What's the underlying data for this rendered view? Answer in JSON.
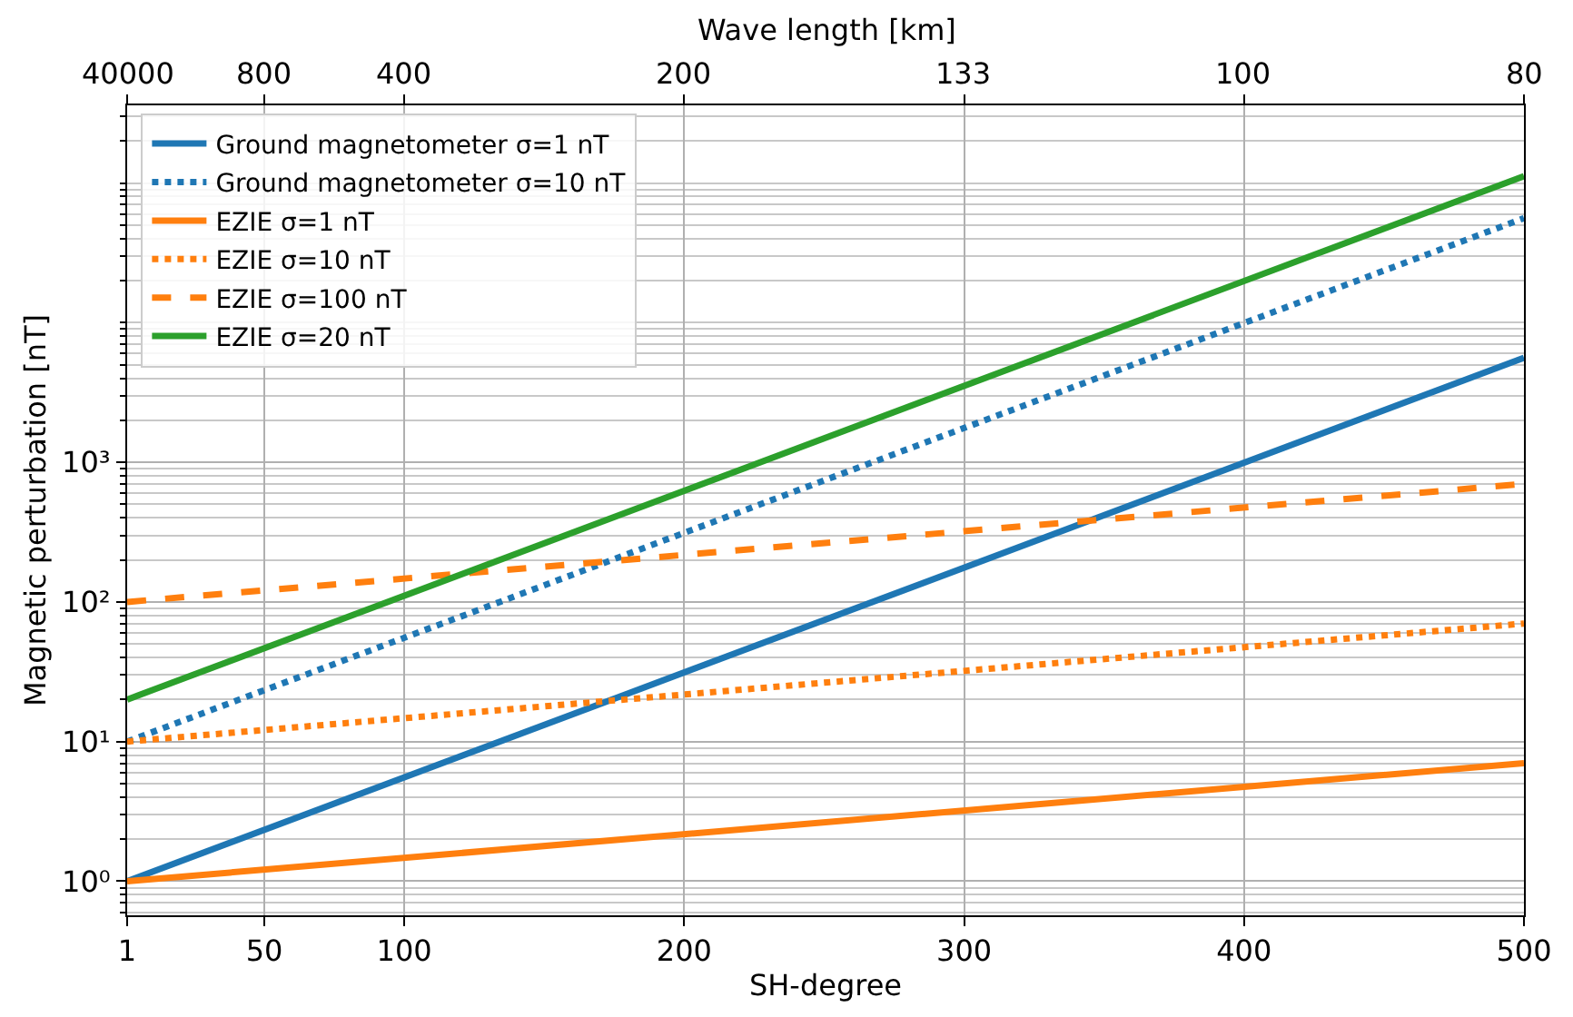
{
  "chart_data": {
    "type": "line",
    "xlabel": "SH-degree",
    "ylabel": "Magnetic perturbation [nT]",
    "x2label": "Wave length [km]",
    "x": [
      1,
      500
    ],
    "series": [
      {
        "name": "Ground magnetometer σ=1 nT",
        "color": "#1f77b4",
        "line_style": "solid",
        "values": [
          1,
          5600
        ]
      },
      {
        "name": "Ground magnetometer σ=10 nT",
        "color": "#1f77b4",
        "line_style": "dotted",
        "values": [
          10,
          56000
        ]
      },
      {
        "name": "EZIE σ=1 nT",
        "color": "#ff7f0e",
        "line_style": "solid",
        "values": [
          1,
          7
        ]
      },
      {
        "name": "EZIE σ=10 nT",
        "color": "#ff7f0e",
        "line_style": "dotted",
        "values": [
          10,
          70
        ]
      },
      {
        "name": "EZIE σ=100 nT",
        "color": "#ff7f0e",
        "line_style": "dashed",
        "values": [
          100,
          700
        ]
      },
      {
        "name": "EZIE σ=20 nT",
        "color": "#2ca02c",
        "line_style": "solid",
        "values": [
          20,
          112000
        ]
      }
    ],
    "log": "y",
    "xlim": [
      1,
      500
    ],
    "ylim": [
      0.57,
      360000
    ],
    "xticks": [
      1,
      50,
      100,
      200,
      300,
      400,
      500
    ],
    "annotations": [
      "40000",
      "800",
      "400",
      "200",
      "133",
      "100",
      "80"
    ],
    "yticks": [
      {
        "value": 1,
        "label": "10⁰"
      },
      {
        "value": 10,
        "label": "10¹"
      },
      {
        "value": 100,
        "label": "10²"
      },
      {
        "value": 1000,
        "label": "10³"
      }
    ],
    "grid": true,
    "legend": "top left"
  }
}
